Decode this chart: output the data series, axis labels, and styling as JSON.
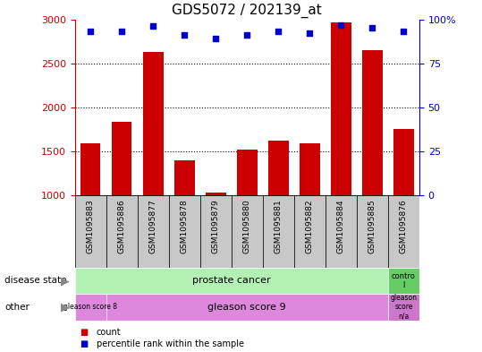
{
  "title": "GDS5072 / 202139_at",
  "samples": [
    "GSM1095883",
    "GSM1095886",
    "GSM1095877",
    "GSM1095878",
    "GSM1095879",
    "GSM1095880",
    "GSM1095881",
    "GSM1095882",
    "GSM1095884",
    "GSM1095885",
    "GSM1095876"
  ],
  "counts": [
    1590,
    1840,
    2630,
    1400,
    1030,
    1520,
    1620,
    1590,
    2970,
    2650,
    1750
  ],
  "percentile_ranks": [
    93,
    93,
    96,
    91,
    89,
    91,
    93,
    92,
    97,
    95,
    93
  ],
  "ylim_left": [
    1000,
    3000
  ],
  "ylim_right": [
    0,
    100
  ],
  "yticks_left": [
    1000,
    1500,
    2000,
    2500,
    3000
  ],
  "yticks_right": [
    0,
    25,
    50,
    75,
    100
  ],
  "bar_color": "#cc0000",
  "dot_color": "#0000cc",
  "tick_area_bg": "#c8c8c8",
  "plot_bg": "#ffffff",
  "left_axis_color": "#cc0000",
  "right_axis_color": "#0000cc",
  "green_light": "#b3f0b3",
  "green_dark": "#66cc66",
  "purple_light": "#dd88dd",
  "purple_darker": "#cc77cc",
  "legend_items": [
    {
      "color": "#cc0000",
      "label": "count"
    },
    {
      "color": "#0000cc",
      "label": "percentile rank within the sample"
    }
  ]
}
